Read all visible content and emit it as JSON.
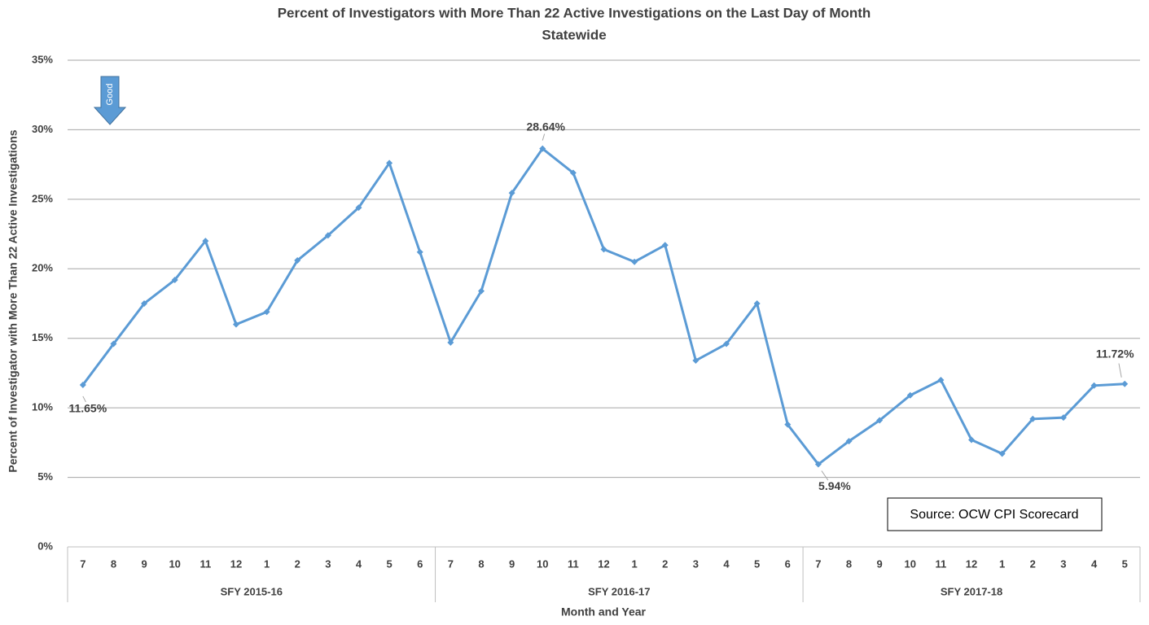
{
  "chart_data": {
    "type": "line",
    "title": "Percent of Investigators with More Than  22 Active Investigations on the Last Day of Month",
    "subtitle": "Statewide",
    "x_label": "Month  and Year",
    "y_label": "Percent of Investigator with More Than 22 Active Investigations",
    "groups": [
      {
        "name": "SFY 2015-16",
        "categories": [
          "7",
          "8",
          "9",
          "10",
          "11",
          "12",
          "1",
          "2",
          "3",
          "4",
          "5",
          "6"
        ]
      },
      {
        "name": "SFY 2016-17",
        "categories": [
          "7",
          "8",
          "9",
          "10",
          "11",
          "12",
          "1",
          "2",
          "3",
          "4",
          "5",
          "6"
        ]
      },
      {
        "name": "SFY 2017-18",
        "categories": [
          "7",
          "8",
          "9",
          "10",
          "11",
          "12",
          "1",
          "2",
          "3",
          "4",
          "5"
        ]
      }
    ],
    "series": [
      {
        "name": "Statewide",
        "color": "#5b9bd5",
        "values": [
          11.65,
          14.6,
          17.5,
          19.2,
          22.0,
          16.0,
          16.9,
          20.6,
          22.4,
          24.4,
          27.6,
          21.2,
          14.7,
          18.4,
          25.45,
          28.64,
          26.9,
          21.4,
          20.5,
          21.7,
          13.4,
          14.6,
          17.5,
          8.8,
          5.94,
          7.6,
          9.1,
          10.9,
          12.0,
          7.7,
          6.7,
          9.2,
          9.3,
          11.6,
          11.72
        ],
        "value_labels": [
          "11.65%",
          null,
          null,
          null,
          null,
          null,
          null,
          null,
          null,
          null,
          null,
          null,
          null,
          null,
          null,
          "28.64%",
          null,
          null,
          null,
          null,
          null,
          null,
          null,
          null,
          "5.94%",
          null,
          null,
          null,
          null,
          null,
          null,
          null,
          null,
          null,
          "11.72%"
        ]
      }
    ],
    "ylim": [
      0,
      35
    ],
    "yticks": [
      {
        "value": 0,
        "label": "0%"
      },
      {
        "value": 5,
        "label": "5%"
      },
      {
        "value": 10,
        "label": "10%"
      },
      {
        "value": 15,
        "label": "15%"
      },
      {
        "value": 20,
        "label": "20%"
      },
      {
        "value": 25,
        "label": "25%"
      },
      {
        "value": 30,
        "label": "30%"
      },
      {
        "value": 35,
        "label": "35%"
      }
    ],
    "grid": true,
    "annotations": [
      "Good",
      "Source: OCW CPI Scorecard"
    ]
  }
}
